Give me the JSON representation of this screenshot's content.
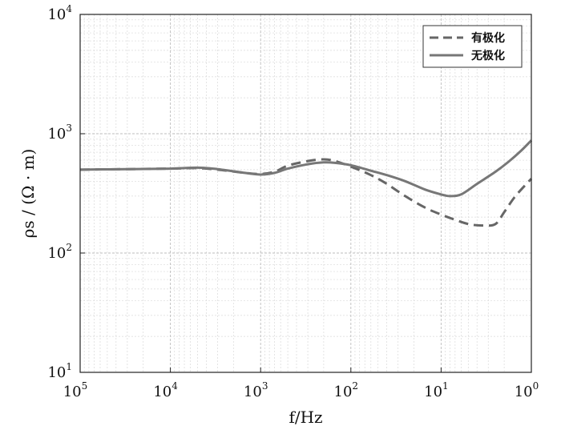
{
  "chart_data": {
    "type": "line",
    "x_scale": "log",
    "y_scale": "log",
    "x_reversed": true,
    "xlim": [
      100000,
      1
    ],
    "ylim": [
      10,
      10000
    ],
    "grid": true,
    "legend_position": "top-right",
    "xlabel": "f/Hz",
    "ylabel": "ρs / (Ω · m)",
    "x_ticks": [
      {
        "base": "10",
        "exp": "5",
        "value": 100000
      },
      {
        "base": "10",
        "exp": "4",
        "value": 10000
      },
      {
        "base": "10",
        "exp": "3",
        "value": 1000
      },
      {
        "base": "10",
        "exp": "2",
        "value": 100
      },
      {
        "base": "10",
        "exp": "1",
        "value": 10
      },
      {
        "base": "10",
        "exp": "0",
        "value": 1
      }
    ],
    "y_ticks": [
      {
        "base": "10",
        "exp": "1",
        "value": 10
      },
      {
        "base": "10",
        "exp": "2",
        "value": 100
      },
      {
        "base": "10",
        "exp": "3",
        "value": 1000
      },
      {
        "base": "10",
        "exp": "4",
        "value": 10000
      }
    ],
    "series": [
      {
        "name": "有极化",
        "style": "dashed",
        "color": "#666666",
        "points": [
          [
            100000,
            500
          ],
          [
            30000,
            505
          ],
          [
            10000,
            510
          ],
          [
            5000,
            515
          ],
          [
            3000,
            500
          ],
          [
            1500,
            470
          ],
          [
            1000,
            460
          ],
          [
            700,
            480
          ],
          [
            500,
            540
          ],
          [
            300,
            590
          ],
          [
            200,
            610
          ],
          [
            150,
            590
          ],
          [
            100,
            530
          ],
          [
            60,
            450
          ],
          [
            40,
            380
          ],
          [
            25,
            300
          ],
          [
            15,
            240
          ],
          [
            10,
            210
          ],
          [
            7,
            190
          ],
          [
            5,
            175
          ],
          [
            3.5,
            170
          ],
          [
            2.5,
            175
          ],
          [
            2,
            220
          ],
          [
            1.5,
            300
          ],
          [
            1,
            420
          ]
        ]
      },
      {
        "name": "无极化",
        "style": "solid",
        "color": "#777777",
        "points": [
          [
            100000,
            500
          ],
          [
            30000,
            505
          ],
          [
            10000,
            510
          ],
          [
            5000,
            520
          ],
          [
            3000,
            505
          ],
          [
            1500,
            470
          ],
          [
            1000,
            455
          ],
          [
            700,
            470
          ],
          [
            500,
            510
          ],
          [
            300,
            555
          ],
          [
            200,
            575
          ],
          [
            150,
            570
          ],
          [
            100,
            545
          ],
          [
            60,
            490
          ],
          [
            40,
            450
          ],
          [
            25,
            400
          ],
          [
            15,
            340
          ],
          [
            10,
            310
          ],
          [
            8,
            300
          ],
          [
            6,
            310
          ],
          [
            4,
            380
          ],
          [
            2.5,
            480
          ],
          [
            1.8,
            580
          ],
          [
            1.3,
            720
          ],
          [
            1,
            880
          ]
        ]
      }
    ]
  }
}
